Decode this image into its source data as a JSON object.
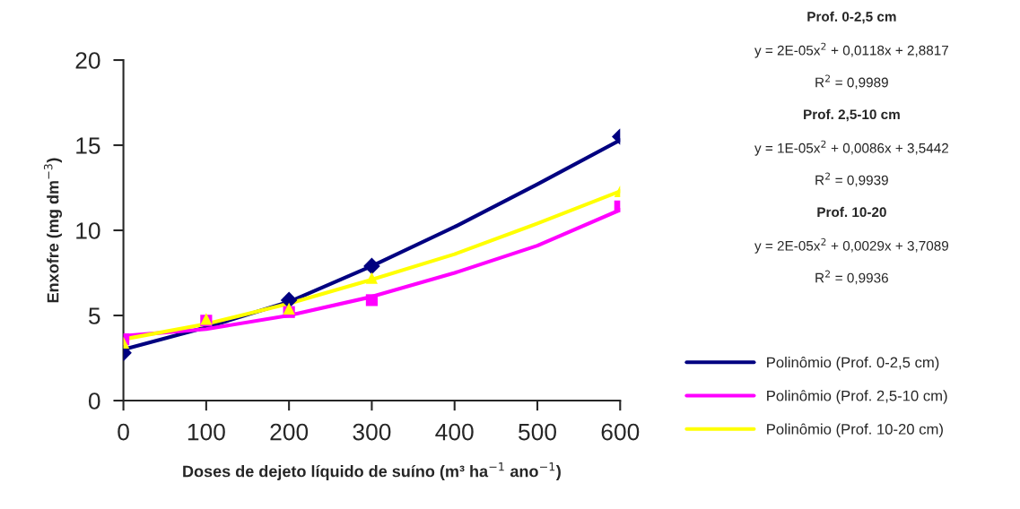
{
  "chart_data": {
    "type": "line",
    "xlabel": "Doses de dejeto líquido de suíno (m³ ha$^{−1}$ ano$^{−1}$)",
    "ylabel": "Enxofre (mg dm$^{−3}$)",
    "xlim": [
      0,
      600
    ],
    "xticks": [
      0,
      100,
      200,
      300,
      400,
      500,
      600
    ],
    "ylim": [
      0,
      20
    ],
    "yticks": [
      0,
      5,
      10,
      15,
      20
    ],
    "grid": false,
    "legend": "right",
    "series": [
      {
        "type": "scatter",
        "marker": "diamond",
        "color": "#000080",
        "x": [
          0,
          200,
          300,
          600
        ],
        "values": [
          2.8,
          5.9,
          7.9,
          15.5
        ]
      },
      {
        "type": "scatter",
        "marker": "square",
        "color": "#ff00ff",
        "x": [
          0,
          100,
          200,
          300,
          600
        ],
        "values": [
          3.6,
          4.7,
          5.2,
          5.9,
          11.4
        ]
      },
      {
        "type": "scatter",
        "marker": "triangle",
        "color": "#ffff00",
        "x": [
          0,
          100,
          200,
          300,
          600
        ],
        "values": [
          3.4,
          4.8,
          5.4,
          7.2,
          12.3
        ]
      },
      {
        "name": "Polinômio (Prof. 0-2,5 cm)",
        "color": "#000080",
        "x": [
          0,
          100,
          200,
          300,
          400,
          500,
          600
        ],
        "values": [
          3.0,
          4.3,
          5.8,
          7.9,
          10.2,
          12.7,
          15.3
        ]
      },
      {
        "name": "Polinômio (Prof. 2,5-10 cm)",
        "color": "#ff00ff",
        "x": [
          0,
          100,
          200,
          300,
          400,
          500,
          600
        ],
        "values": [
          3.8,
          4.2,
          5.0,
          6.1,
          7.5,
          9.1,
          11.2
        ]
      },
      {
        "name": "Polinômio (Prof. 10-20 cm)",
        "color": "#ffff00",
        "x": [
          0,
          100,
          200,
          300,
          400,
          500,
          600
        ],
        "values": [
          3.6,
          4.5,
          5.7,
          7.1,
          8.6,
          10.4,
          12.3
        ]
      }
    ],
    "annotations": [
      "Prof. 0-2,5 cm",
      "y = 2E-05x$^{2}$ + 0,0118x + 2,8817",
      "R$^{2}$ = 0,9989",
      "Prof. 2,5-10 cm",
      "y = 1E-05x$^{2}$ + 0,0086x + 3,5442",
      "R$^{2}$ = 0,9939",
      "Prof. 10-20",
      "y = 2E-05x$^{2}$ + 0,0029x + 3,7089",
      "R$^{2}$ = 0,9936"
    ]
  }
}
